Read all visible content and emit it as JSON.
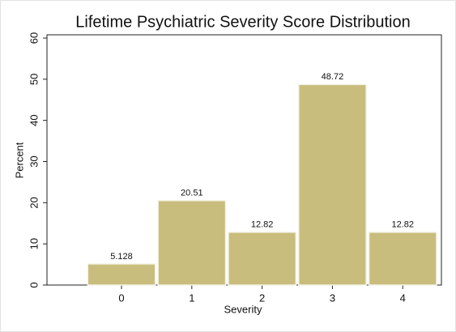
{
  "chart_data": {
    "type": "bar",
    "title": "Lifetime Psychiatric Severity Score Distribution",
    "x_label": "Severity",
    "y_label": "Percent",
    "x": [
      0,
      1,
      2,
      3,
      4
    ],
    "values": [
      5.128,
      20.51,
      12.82,
      48.72,
      12.82
    ],
    "color": "#c8bd7c",
    "xlim": [
      -1.06,
      4.55
    ],
    "xticks": [
      0,
      1,
      2,
      3,
      4
    ],
    "ylim": [
      0,
      60
    ],
    "yticks": [
      0,
      10,
      20,
      30,
      40,
      50,
      60
    ],
    "grid": false
  }
}
